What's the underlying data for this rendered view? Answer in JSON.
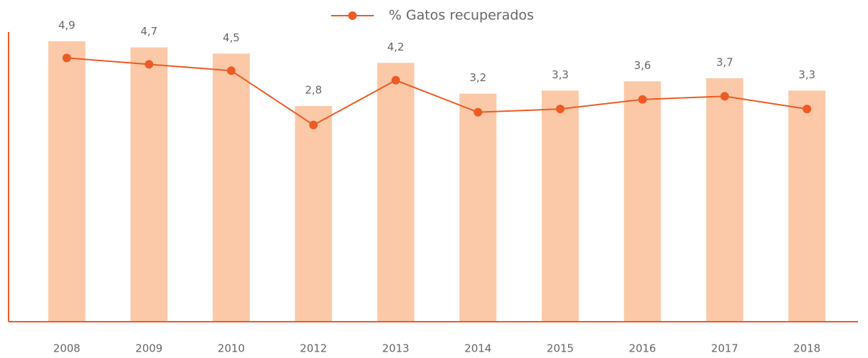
{
  "chart_data": {
    "type": "bar_line",
    "categories": [
      "2008",
      "2009",
      "2010",
      "2012",
      "2013",
      "2014",
      "2015",
      "2016",
      "2017",
      "2018"
    ],
    "series": [
      {
        "name": "% Gatos recuperados",
        "color": "#ee5a24",
        "bar_color": "#fbc9a8",
        "values": [
          4.9,
          4.7,
          4.5,
          2.8,
          4.2,
          3.2,
          3.3,
          3.6,
          3.7,
          3.3
        ],
        "value_labels": [
          "4,9",
          "4,7",
          "4,5",
          "2,8",
          "4,2",
          "3,2",
          "3,3",
          "3,6",
          "3,7",
          "3,3"
        ]
      }
    ],
    "ylim": [
      -4.2,
      5.5
    ],
    "y2lim": [
      -3.36,
      6.0
    ],
    "legend": "top"
  }
}
